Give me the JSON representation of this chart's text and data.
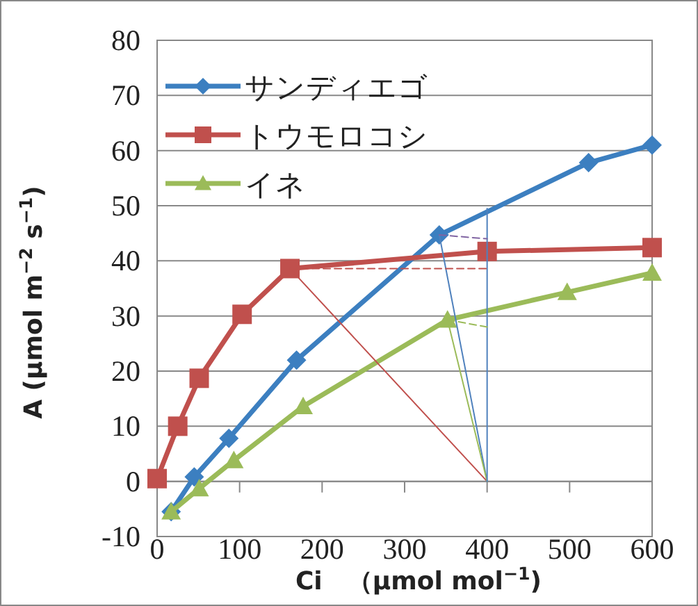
{
  "chart_data": {
    "type": "line",
    "xlabel": "Ci　（μmol mol$^{−1}$)",
    "ylabel": "A (μmol m$^{−2}$ s$^{−1}$)",
    "xlim": [
      0,
      600
    ],
    "xticks": [
      0,
      100,
      200,
      300,
      400,
      500,
      600
    ],
    "ylim": [
      -10,
      80
    ],
    "yticks": [
      -10,
      0,
      10,
      20,
      30,
      40,
      50,
      60,
      70,
      80
    ],
    "grid": "y",
    "legend": "top left",
    "series": [
      {
        "name": "サンディエゴ",
        "color": "#3c7fc0",
        "marker": "diamond",
        "x": [
          17,
          45,
          87,
          169,
          342,
          523,
          600
        ],
        "values": [
          -5.5,
          0.8,
          7.8,
          22,
          44.7,
          57.8,
          61
        ]
      },
      {
        "name": "トウモロコシ",
        "color": "#c0504d",
        "marker": "square",
        "x": [
          0,
          25,
          51,
          103,
          161,
          400,
          600
        ],
        "values": [
          0.5,
          10,
          18.7,
          30.3,
          38.6,
          41.7,
          42.4
        ]
      },
      {
        "name": "イネ",
        "color": "#9bbb59",
        "marker": "triangle",
        "x": [
          17,
          51,
          93,
          177,
          352,
          497,
          600
        ],
        "values": [
          -5.5,
          -1.3,
          3.8,
          13.6,
          29.3,
          34.3,
          37.8
        ]
      },
      {
        "color": "#c0504d",
        "marker": "none",
        "line_style": "solid",
        "x": [
          161,
          400
        ],
        "values": [
          38.6,
          0
        ]
      },
      {
        "color": "#4f81bd",
        "marker": "none",
        "line_style": "solid",
        "x": [
          342,
          400
        ],
        "values": [
          44.7,
          0
        ]
      },
      {
        "color": "#9bbb59",
        "marker": "none",
        "line_style": "solid",
        "x": [
          352,
          400
        ],
        "values": [
          29.3,
          0
        ]
      },
      {
        "color": "#4f81bd",
        "marker": "none",
        "line_style": "solid",
        "x": [
          400,
          400
        ],
        "values": [
          0,
          49.5
        ]
      },
      {
        "color": "#c0504d",
        "marker": "none",
        "line_style": "dashed",
        "x": [
          161,
          400
        ],
        "values": [
          38.6,
          38.6
        ]
      },
      {
        "color": "#8064a2",
        "marker": "none",
        "line_style": "dashed",
        "x": [
          342,
          400
        ],
        "values": [
          44.7,
          44
        ]
      },
      {
        "color": "#9bbb59",
        "marker": "none",
        "line_style": "dashed",
        "x": [
          352,
          400
        ],
        "values": [
          29.3,
          28
        ]
      }
    ]
  }
}
